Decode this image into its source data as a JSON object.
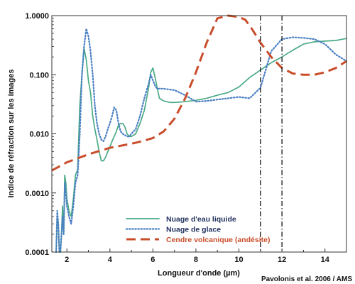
{
  "chart_data": {
    "type": "line",
    "title": "",
    "xlabel": "Longueur d'onde (µm)",
    "ylabel": "Indice de réfraction sur les images",
    "credit": "Pavolonis et al. 2006 / AMS",
    "x_range": [
      1.3,
      15
    ],
    "y_range": [
      0.0001,
      1.0
    ],
    "y_scale": "log",
    "x_ticks": [
      "2",
      "4",
      "6",
      "8",
      "10",
      "12",
      "14"
    ],
    "y_ticks": [
      "0.0001",
      "0.0010",
      "0.010",
      "0.100",
      "1.0000"
    ],
    "legend_position": "bottom-center",
    "vertical_lines": [
      11,
      12
    ],
    "series": [
      {
        "name": "Nuage d'eau liquide",
        "color": "#4aaa85",
        "style": "solid",
        "x": [
          1.5,
          1.55,
          1.6,
          1.65,
          1.7,
          1.75,
          1.8,
          1.85,
          1.9,
          1.95,
          2.0,
          2.1,
          2.2,
          2.3,
          2.4,
          2.5,
          2.6,
          2.7,
          2.8,
          2.9,
          3.0,
          3.1,
          3.2,
          3.3,
          3.4,
          3.5,
          3.6,
          3.7,
          3.8,
          3.9,
          4.0,
          4.1,
          4.2,
          4.3,
          4.4,
          4.5,
          4.6,
          4.7,
          4.8,
          4.9,
          5.0,
          5.2,
          5.4,
          5.6,
          5.8,
          5.9,
          6.0,
          6.1,
          6.2,
          6.3,
          6.5,
          6.8,
          7.0,
          7.5,
          8.0,
          8.5,
          9.0,
          9.5,
          10.0,
          10.5,
          11.0,
          11.5,
          12.0,
          12.5,
          13.0,
          13.5,
          14.0,
          14.5,
          15.0
        ],
        "y": [
          0.0001,
          0.0004,
          0.0003,
          0.0001,
          0.0001,
          0.0002,
          0.0006,
          0.0002,
          0.002,
          0.0015,
          0.0008,
          0.0005,
          0.0004,
          0.0008,
          0.002,
          0.0025,
          0.03,
          0.1,
          0.28,
          0.18,
          0.08,
          0.05,
          0.02,
          0.012,
          0.008,
          0.005,
          0.0035,
          0.0035,
          0.004,
          0.005,
          0.006,
          0.0075,
          0.009,
          0.011,
          0.014,
          0.015,
          0.015,
          0.013,
          0.01,
          0.009,
          0.009,
          0.01,
          0.015,
          0.025,
          0.06,
          0.11,
          0.13,
          0.09,
          0.06,
          0.04,
          0.036,
          0.034,
          0.034,
          0.035,
          0.037,
          0.04,
          0.045,
          0.05,
          0.062,
          0.09,
          0.12,
          0.16,
          0.2,
          0.26,
          0.33,
          0.36,
          0.37,
          0.38,
          0.41
        ]
      },
      {
        "name": "Nuage de glace",
        "color": "#4a7fc4",
        "style": "dotted",
        "x": [
          1.5,
          1.55,
          1.6,
          1.65,
          1.7,
          1.75,
          1.8,
          1.85,
          1.9,
          1.95,
          2.0,
          2.1,
          2.2,
          2.3,
          2.4,
          2.5,
          2.6,
          2.7,
          2.8,
          2.9,
          3.0,
          3.1,
          3.2,
          3.3,
          3.4,
          3.5,
          3.6,
          3.7,
          3.8,
          3.9,
          4.0,
          4.1,
          4.2,
          4.3,
          4.4,
          4.5,
          4.6,
          4.7,
          4.8,
          4.9,
          5.0,
          5.2,
          5.4,
          5.6,
          5.8,
          5.9,
          6.0,
          6.1,
          6.2,
          6.3,
          6.5,
          6.8,
          7.0,
          7.5,
          8.0,
          8.5,
          9.0,
          9.5,
          10.0,
          10.5,
          11.0,
          11.5,
          12.0,
          12.5,
          13.0,
          13.5,
          14.0,
          14.5,
          15.0
        ],
        "y": [
          0.0001,
          0.0005,
          0.0003,
          0.0001,
          0.0001,
          0.0002,
          0.0004,
          0.0002,
          0.0015,
          0.001,
          0.0006,
          0.0004,
          0.0003,
          0.0006,
          0.0015,
          0.002,
          0.01,
          0.1,
          0.3,
          0.6,
          0.45,
          0.25,
          0.1,
          0.03,
          0.015,
          0.01,
          0.008,
          0.0075,
          0.009,
          0.012,
          0.015,
          0.02,
          0.028,
          0.025,
          0.015,
          0.011,
          0.01,
          0.0095,
          0.009,
          0.009,
          0.01,
          0.012,
          0.02,
          0.04,
          0.07,
          0.1,
          0.08,
          0.065,
          0.058,
          0.058,
          0.058,
          0.056,
          0.055,
          0.045,
          0.035,
          0.036,
          0.038,
          0.04,
          0.042,
          0.04,
          0.06,
          0.25,
          0.4,
          0.43,
          0.42,
          0.4,
          0.33,
          0.22,
          0.17
        ]
      },
      {
        "name": "Cendre volcanique (andésite)",
        "color": "#c94d2a",
        "style": "dashed",
        "x": [
          1.3,
          2.0,
          3.0,
          4.0,
          5.0,
          5.5,
          6.0,
          6.5,
          7.0,
          7.5,
          8.0,
          8.5,
          9.0,
          9.5,
          10.0,
          10.3,
          10.6,
          11.0,
          11.5,
          12.0,
          12.5,
          13.0,
          13.5,
          14.0,
          14.5,
          15.0
        ],
        "y": [
          0.0024,
          0.0033,
          0.0045,
          0.0058,
          0.0068,
          0.0075,
          0.0085,
          0.011,
          0.018,
          0.04,
          0.11,
          0.35,
          0.9,
          1.0,
          0.95,
          0.85,
          0.6,
          0.35,
          0.2,
          0.13,
          0.105,
          0.1,
          0.1,
          0.11,
          0.13,
          0.17
        ]
      }
    ]
  }
}
